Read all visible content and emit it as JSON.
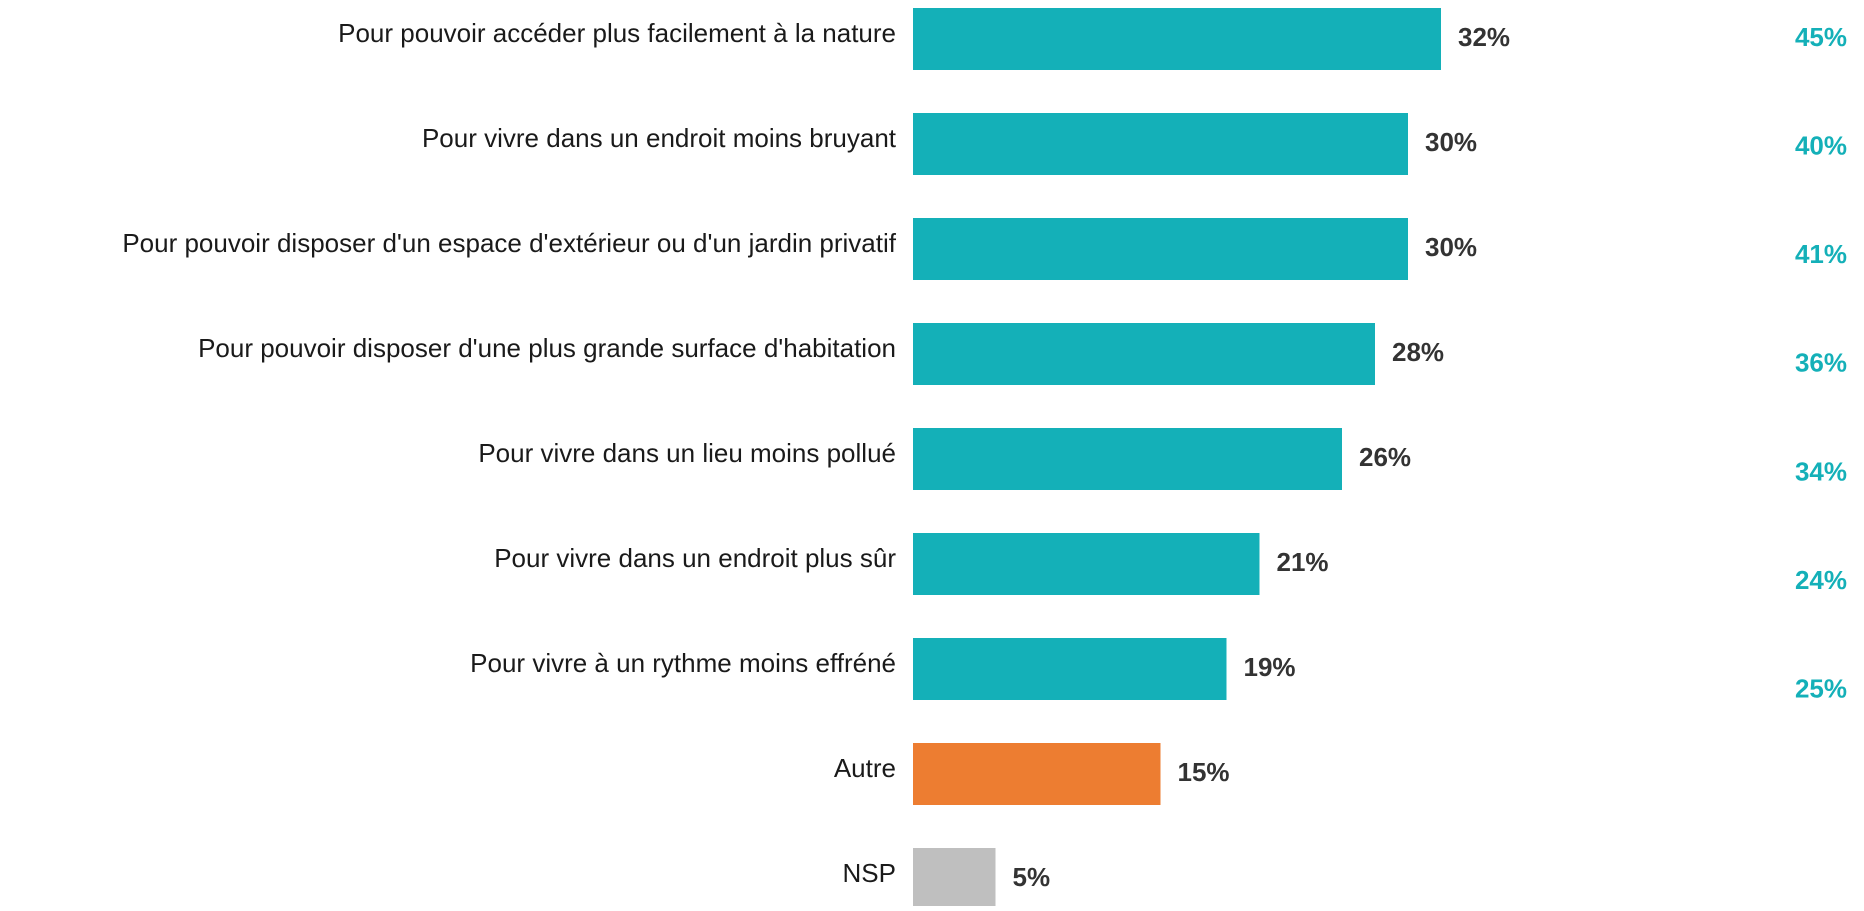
{
  "chart_data": {
    "type": "bar",
    "orientation": "horizontal",
    "categories": [
      "Pour pouvoir accéder plus facilement à la nature",
      "Pour vivre dans un endroit moins bruyant",
      "Pour pouvoir disposer d'un espace d'extérieur ou d'un jardin privatif",
      "Pour pouvoir disposer d'une plus grande surface d'habitation",
      "Pour vivre dans un lieu moins pollué",
      "Pour vivre dans un endroit plus sûr",
      "Pour vivre à un rythme moins effréné",
      "Autre",
      "NSP"
    ],
    "xlim": [
      0,
      50
    ],
    "series": [
      {
        "colors": [
          "#14b0b8",
          "#14b0b8",
          "#14b0b8",
          "#14b0b8",
          "#14b0b8",
          "#14b0b8",
          "#14b0b8",
          "#ed7d31",
          "#bfbfbf"
        ],
        "values": [
          32,
          30,
          30,
          28,
          26,
          21,
          19,
          15,
          5
        ],
        "value_labels": [
          "32%",
          "30%",
          "30%",
          "28%",
          "26%",
          "21%",
          "19%",
          "15%",
          "5%"
        ]
      },
      {
        "color": "#14b0b8",
        "values": [
          45,
          40,
          41,
          36,
          34,
          24,
          25,
          null,
          null
        ],
        "value_labels": [
          "45%",
          "40%",
          "41%",
          "36%",
          "34%",
          "24%",
          "25%",
          null,
          null
        ]
      }
    ]
  }
}
